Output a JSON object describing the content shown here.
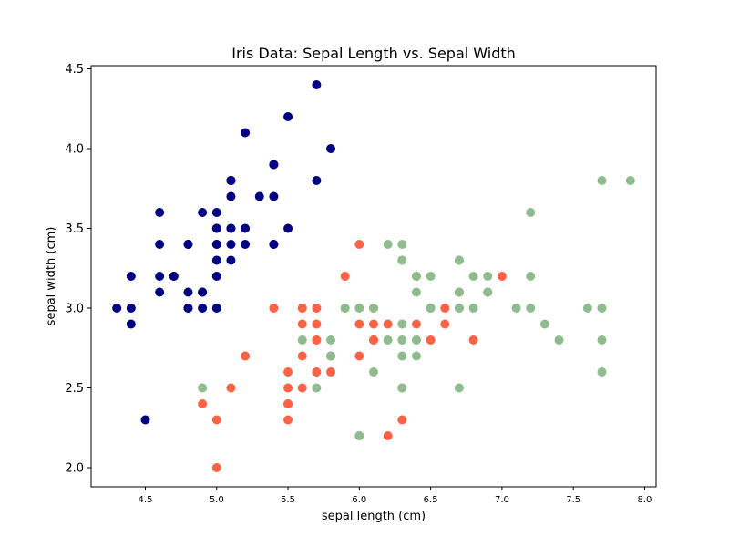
{
  "chart_data": {
    "type": "scatter",
    "title": "Iris Data: Sepal Length vs. Sepal Width",
    "xlabel": "sepal length (cm)",
    "ylabel": "sepal width (cm)",
    "xlim": [
      4.12,
      8.08
    ],
    "ylim": [
      1.88,
      4.52
    ],
    "grid": false,
    "legend": "none",
    "xticks": [
      "4.5",
      "5.0",
      "5.5",
      "6.0",
      "6.5",
      "7.0",
      "7.5",
      "8.0"
    ],
    "yticks": [
      "2.0",
      "2.5",
      "3.0",
      "3.5",
      "4.0",
      "4.5"
    ],
    "series": [
      {
        "color": "#000080",
        "points": [
          [
            5.1,
            3.5
          ],
          [
            4.9,
            3.0
          ],
          [
            4.7,
            3.2
          ],
          [
            4.6,
            3.1
          ],
          [
            5.0,
            3.6
          ],
          [
            5.4,
            3.9
          ],
          [
            4.6,
            3.4
          ],
          [
            5.0,
            3.4
          ],
          [
            4.4,
            2.9
          ],
          [
            4.9,
            3.1
          ],
          [
            5.4,
            3.7
          ],
          [
            4.8,
            3.4
          ],
          [
            4.8,
            3.0
          ],
          [
            4.3,
            3.0
          ],
          [
            5.8,
            4.0
          ],
          [
            5.7,
            4.4
          ],
          [
            5.4,
            3.9
          ],
          [
            5.1,
            3.5
          ],
          [
            5.7,
            3.8
          ],
          [
            5.1,
            3.8
          ],
          [
            5.4,
            3.4
          ],
          [
            5.1,
            3.7
          ],
          [
            4.6,
            3.6
          ],
          [
            5.1,
            3.3
          ],
          [
            4.8,
            3.4
          ],
          [
            5.0,
            3.0
          ],
          [
            5.0,
            3.4
          ],
          [
            5.2,
            3.5
          ],
          [
            5.2,
            3.4
          ],
          [
            4.7,
            3.2
          ],
          [
            4.8,
            3.1
          ],
          [
            5.4,
            3.4
          ],
          [
            5.2,
            4.1
          ],
          [
            5.5,
            4.2
          ],
          [
            4.9,
            3.1
          ],
          [
            5.0,
            3.2
          ],
          [
            5.5,
            3.5
          ],
          [
            4.9,
            3.6
          ],
          [
            4.4,
            3.0
          ],
          [
            5.1,
            3.4
          ],
          [
            5.0,
            3.5
          ],
          [
            4.5,
            2.3
          ],
          [
            4.4,
            3.2
          ],
          [
            5.0,
            3.5
          ],
          [
            5.1,
            3.8
          ],
          [
            4.8,
            3.0
          ],
          [
            5.1,
            3.8
          ],
          [
            4.6,
            3.2
          ],
          [
            5.3,
            3.7
          ],
          [
            5.0,
            3.3
          ]
        ]
      },
      {
        "color": "#ff6347",
        "points": [
          [
            7.0,
            3.2
          ],
          [
            6.4,
            3.2
          ],
          [
            6.9,
            3.1
          ],
          [
            5.5,
            2.3
          ],
          [
            6.5,
            2.8
          ],
          [
            5.7,
            2.8
          ],
          [
            6.3,
            3.3
          ],
          [
            4.9,
            2.4
          ],
          [
            6.6,
            2.9
          ],
          [
            5.2,
            2.7
          ],
          [
            5.0,
            2.0
          ],
          [
            5.9,
            3.0
          ],
          [
            6.0,
            2.2
          ],
          [
            6.1,
            2.9
          ],
          [
            5.6,
            2.9
          ],
          [
            6.7,
            3.1
          ],
          [
            5.6,
            3.0
          ],
          [
            5.8,
            2.7
          ],
          [
            6.2,
            2.2
          ],
          [
            5.6,
            2.5
          ],
          [
            5.9,
            3.2
          ],
          [
            6.1,
            2.8
          ],
          [
            6.3,
            2.5
          ],
          [
            6.1,
            2.8
          ],
          [
            6.4,
            2.9
          ],
          [
            6.6,
            3.0
          ],
          [
            6.8,
            2.8
          ],
          [
            6.7,
            3.0
          ],
          [
            6.0,
            2.9
          ],
          [
            5.7,
            2.6
          ],
          [
            5.5,
            2.4
          ],
          [
            5.5,
            2.4
          ],
          [
            5.8,
            2.7
          ],
          [
            6.0,
            2.7
          ],
          [
            5.4,
            3.0
          ],
          [
            6.0,
            3.4
          ],
          [
            6.7,
            3.1
          ],
          [
            6.3,
            2.3
          ],
          [
            5.6,
            3.0
          ],
          [
            5.5,
            2.5
          ],
          [
            5.5,
            2.6
          ],
          [
            6.1,
            3.0
          ],
          [
            5.8,
            2.6
          ],
          [
            5.0,
            2.3
          ],
          [
            5.6,
            2.7
          ],
          [
            5.7,
            3.0
          ],
          [
            5.7,
            2.9
          ],
          [
            6.2,
            2.9
          ],
          [
            5.1,
            2.5
          ],
          [
            5.7,
            2.8
          ]
        ]
      },
      {
        "color": "#8fbc8f",
        "points": [
          [
            6.3,
            3.3
          ],
          [
            5.8,
            2.7
          ],
          [
            7.1,
            3.0
          ],
          [
            6.3,
            2.9
          ],
          [
            6.5,
            3.0
          ],
          [
            7.6,
            3.0
          ],
          [
            4.9,
            2.5
          ],
          [
            7.3,
            2.9
          ],
          [
            6.7,
            2.5
          ],
          [
            7.2,
            3.6
          ],
          [
            6.5,
            3.2
          ],
          [
            6.4,
            2.7
          ],
          [
            6.8,
            3.0
          ],
          [
            5.7,
            2.5
          ],
          [
            5.8,
            2.8
          ],
          [
            6.4,
            3.2
          ],
          [
            6.5,
            3.0
          ],
          [
            7.7,
            3.8
          ],
          [
            7.7,
            2.6
          ],
          [
            6.0,
            2.2
          ],
          [
            6.9,
            3.2
          ],
          [
            5.6,
            2.8
          ],
          [
            7.7,
            2.8
          ],
          [
            6.3,
            2.7
          ],
          [
            6.7,
            3.3
          ],
          [
            7.2,
            3.2
          ],
          [
            6.2,
            2.8
          ],
          [
            6.1,
            3.0
          ],
          [
            6.4,
            2.8
          ],
          [
            7.2,
            3.0
          ],
          [
            7.4,
            2.8
          ],
          [
            7.9,
            3.8
          ],
          [
            6.4,
            2.8
          ],
          [
            6.3,
            2.8
          ],
          [
            6.1,
            2.6
          ],
          [
            7.7,
            3.0
          ],
          [
            6.3,
            3.4
          ],
          [
            6.4,
            3.1
          ],
          [
            6.0,
            3.0
          ],
          [
            6.9,
            3.1
          ],
          [
            6.7,
            3.1
          ],
          [
            6.9,
            3.1
          ],
          [
            5.8,
            2.7
          ],
          [
            6.8,
            3.2
          ],
          [
            6.7,
            3.3
          ],
          [
            6.7,
            3.0
          ],
          [
            6.3,
            2.5
          ],
          [
            6.5,
            3.0
          ],
          [
            6.2,
            3.4
          ],
          [
            5.9,
            3.0
          ]
        ]
      }
    ]
  }
}
